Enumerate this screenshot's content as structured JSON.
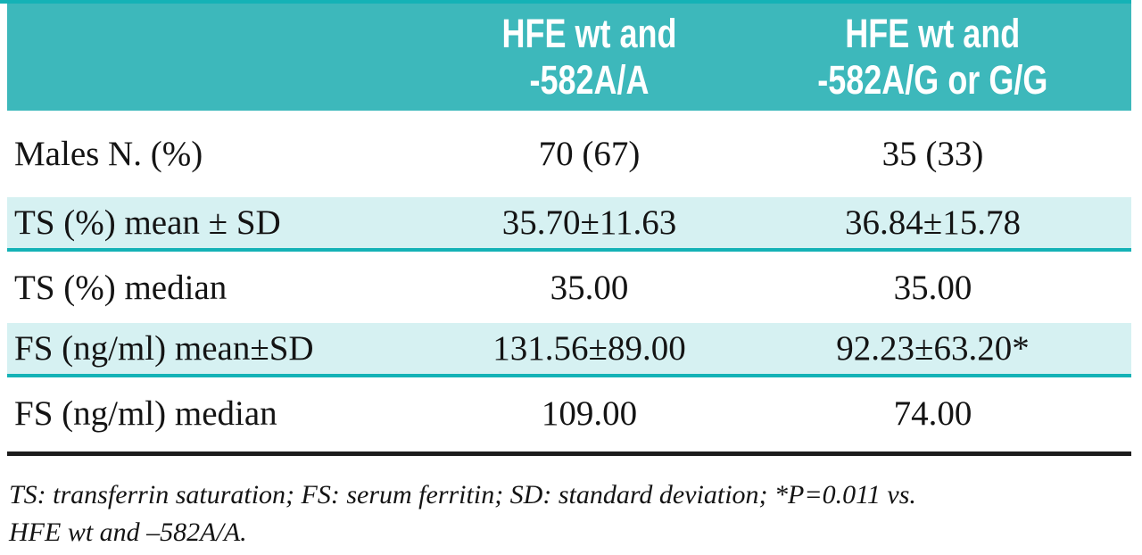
{
  "colors": {
    "header_bg": "#3db8bb",
    "stripe_bg": "#d6f1f2",
    "divider": "#14b2b6",
    "rule": "#1c1c1c",
    "header_text": "#ffffff",
    "body_text": "#141414"
  },
  "table": {
    "header": {
      "col2": "HFE wt and\n-582A/A",
      "col3": "HFE wt and\n-582A/G or G/G"
    },
    "rows": [
      {
        "label": "Males N. (%)",
        "col2": "70 (67)",
        "col3": "35 (33)"
      },
      {
        "label": "TS (%) mean ± SD",
        "col2": "35.70±11.63",
        "col3": "36.84±15.78"
      },
      {
        "label": "TS (%) median",
        "col2": "35.00",
        "col3": "35.00"
      },
      {
        "label": "FS (ng/ml) mean±SD",
        "col2": "131.56±89.00",
        "col3": "92.23±63.20*"
      },
      {
        "label": "FS (ng/ml) median",
        "col2": "109.00",
        "col3": "74.00"
      }
    ]
  },
  "footnote": "TS: transferrin saturation; FS: serum ferritin; SD: standard deviation; *P=0.011 vs.\nHFE wt and –582A/A."
}
